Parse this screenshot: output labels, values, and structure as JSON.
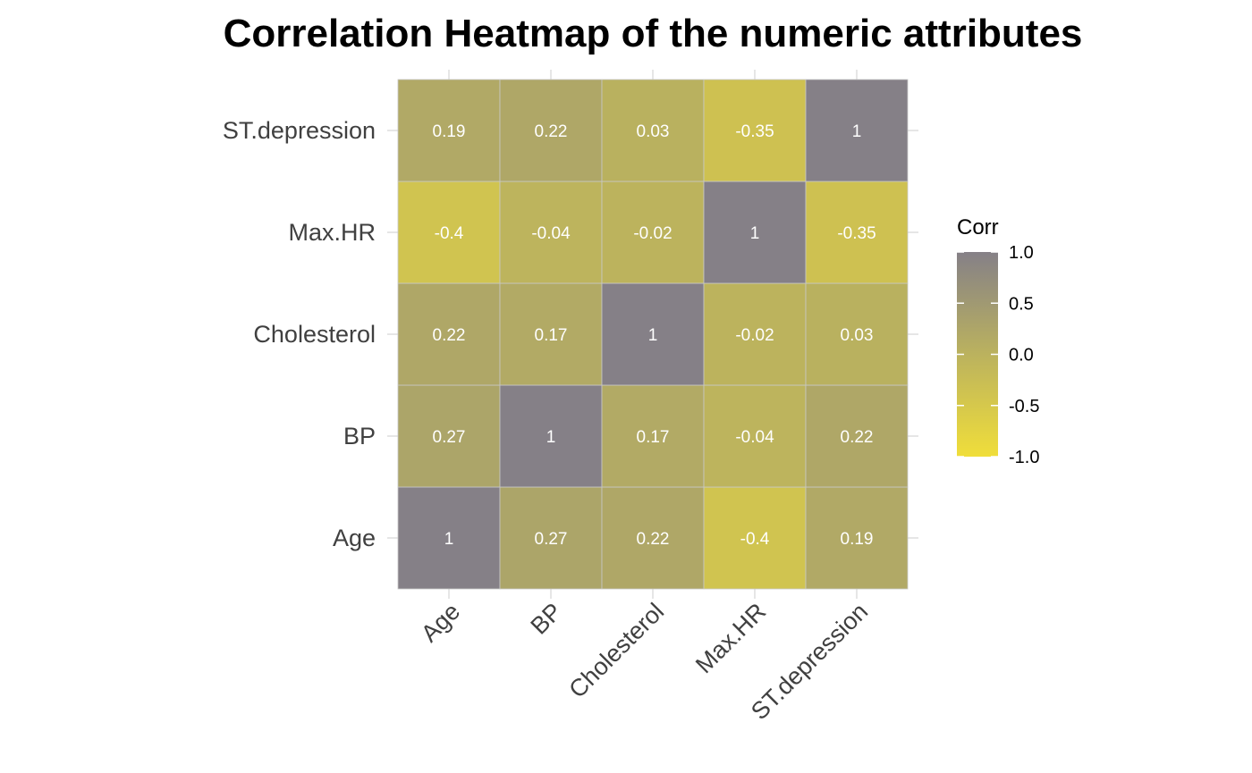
{
  "chart_data": {
    "type": "heatmap",
    "title": "Correlation Heatmap of the numeric attributes",
    "x_categories": [
      "Age",
      "BP",
      "Cholesterol",
      "Max.HR",
      "ST.depression"
    ],
    "y_categories": [
      "Age",
      "BP",
      "Cholesterol",
      "Max.HR",
      "ST.depression"
    ],
    "matrix": [
      [
        1,
        0.27,
        0.22,
        -0.4,
        0.19
      ],
      [
        0.27,
        1,
        0.17,
        -0.04,
        0.22
      ],
      [
        0.22,
        0.17,
        1,
        -0.02,
        0.03
      ],
      [
        -0.4,
        -0.04,
        -0.02,
        1,
        -0.35
      ],
      [
        0.19,
        0.22,
        0.03,
        -0.35,
        1
      ]
    ],
    "cell_labels": [
      [
        "1",
        "0.27",
        "0.22",
        "-0.4",
        "0.19"
      ],
      [
        "0.27",
        "1",
        "0.17",
        "-0.04",
        "0.22"
      ],
      [
        "0.22",
        "0.17",
        "1",
        "-0.02",
        "0.03"
      ],
      [
        "-0.4",
        "-0.04",
        "-0.02",
        "1",
        "-0.35"
      ],
      [
        "0.19",
        "0.22",
        "0.03",
        "-0.35",
        "1"
      ]
    ],
    "legend": {
      "title": "Corr",
      "range": [
        -1.0,
        1.0
      ],
      "tick_labels": [
        "1.0",
        "0.5",
        "0.0",
        "-0.5",
        "-1.0"
      ],
      "tick_values": [
        1.0,
        0.5,
        0.0,
        -0.5,
        -1.0
      ],
      "placement": "right"
    },
    "colors": {
      "low": "#f0de3a",
      "mid": "#bbb25e",
      "high": "#858087"
    },
    "grid": true
  }
}
